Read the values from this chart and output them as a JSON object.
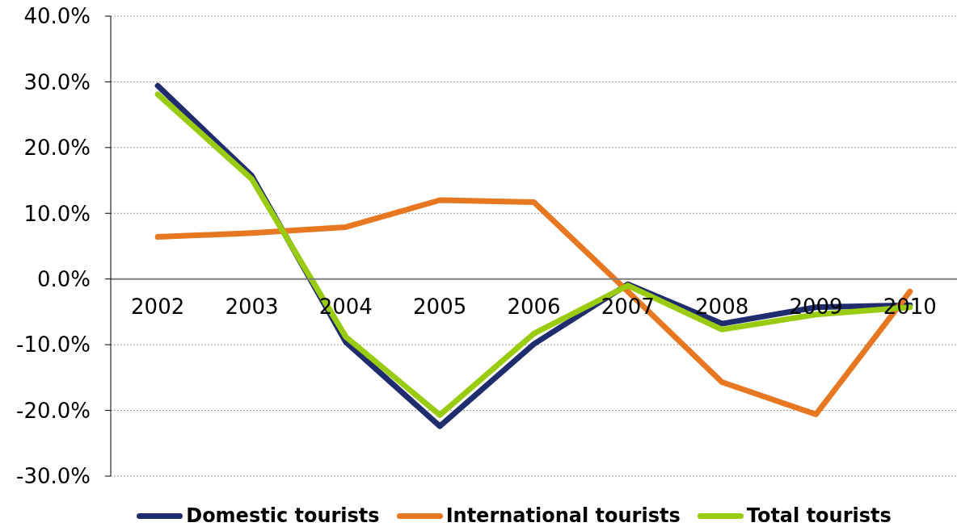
{
  "chart_data": {
    "type": "line",
    "categories": [
      "2002",
      "2003",
      "2004",
      "2005",
      "2006",
      "2007",
      "2008",
      "2009",
      "2010"
    ],
    "series": [
      {
        "name": "Domestic tourists",
        "color": "#1f2c6e",
        "values": [
          29.4,
          15.7,
          -9.6,
          -22.4,
          -9.9,
          -0.8,
          -6.8,
          -4.3,
          -4.0
        ]
      },
      {
        "name": "International tourists",
        "color": "#e87722",
        "values": [
          6.4,
          7.0,
          7.9,
          12.0,
          11.7,
          -1.9,
          -15.7,
          -20.6,
          -1.9
        ]
      },
      {
        "name": "Total tourists",
        "color": "#99cc11",
        "values": [
          28.1,
          15.2,
          -8.8,
          -20.7,
          -8.3,
          -1.0,
          -7.7,
          -5.4,
          -4.3
        ]
      }
    ],
    "ylim": [
      -30,
      40
    ],
    "yticks": [
      {
        "value": -30,
        "label": "-30.0%"
      },
      {
        "value": -20,
        "label": "-20.0%"
      },
      {
        "value": -10,
        "label": "-10.0%"
      },
      {
        "value": 0,
        "label": "0.0%"
      },
      {
        "value": 10,
        "label": "10.0%"
      },
      {
        "value": 20,
        "label": "20.0%"
      },
      {
        "value": 30,
        "label": "30.0%"
      },
      {
        "value": 40,
        "label": "40.0%"
      }
    ],
    "grid": "y",
    "legend": "bottom",
    "marker": "none",
    "line_style": "solid"
  }
}
